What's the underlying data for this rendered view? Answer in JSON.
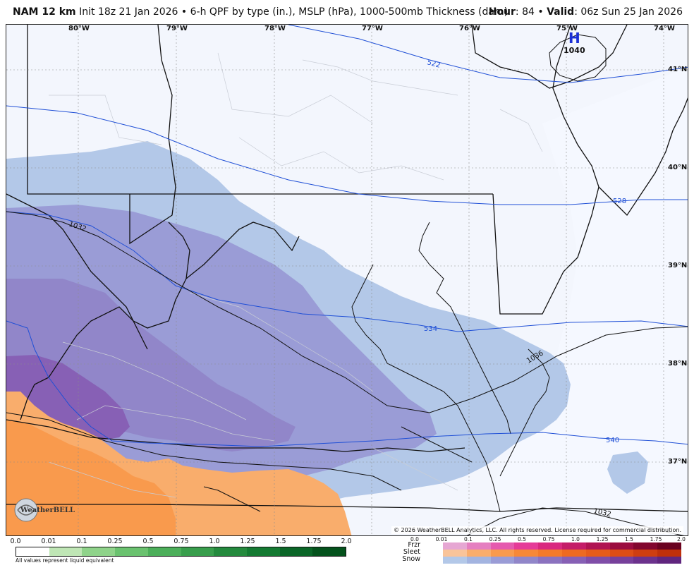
{
  "header": {
    "model": "NAM 12 km",
    "init": "Init 18z 21 Jan 2026",
    "separator": "•",
    "product": "6-h QPF by type (in.), MSLP (hPa), 1000-500mb Thickness (dam)",
    "hour_label": "Hour",
    "hour_value": ": 84",
    "valid_label": "Valid",
    "valid_value": ": 06z Sun 25 Jan 2026"
  },
  "map": {
    "longitudes": [
      "80°W",
      "79°W",
      "78°W",
      "77°W",
      "76°W",
      "75°W",
      "74°W"
    ],
    "latitudes": [
      "41°N",
      "40°N",
      "39°N",
      "38°N",
      "37°N"
    ],
    "high_pressure": {
      "letter": "H",
      "value": "1040"
    },
    "isobar_labels": [
      "1032",
      "1036",
      "1032"
    ],
    "thickness_labels": [
      "522",
      "528",
      "534",
      "540"
    ],
    "copyright": "© 2026 WeatherBELL Analytics, LLC. All rights reserved. License required for commercial distribution.",
    "logo_text": "WeatherBELL"
  },
  "legend_qpf": {
    "ticks": [
      "0.0",
      "0.01",
      "0.1",
      "0.25",
      "0.5",
      "0.75",
      "1.0",
      "1.25",
      "1.5",
      "1.75",
      "2.0"
    ],
    "colors": [
      "#ffffff",
      "#bfe6b5",
      "#8fd38a",
      "#6ac26f",
      "#4caf5a",
      "#389e4c",
      "#248a3d",
      "#147a32",
      "#0a6627",
      "#04521c"
    ],
    "note": "All values represent liquid equivalent"
  },
  "legend_type": {
    "labels": [
      "Frzr",
      "Sleet",
      "Snow"
    ],
    "ticks": [
      "0.0",
      "0.01",
      "0.1",
      "0.25",
      "0.5",
      "0.75",
      "1.0",
      "1.25",
      "1.5",
      "1.75",
      "2.0"
    ],
    "frzr_colors": [
      "#e6a7d3",
      "#e57fc0",
      "#e55aae",
      "#e53b98",
      "#d9287f",
      "#c41d68",
      "#b01452",
      "#9b0c3f",
      "#82062e",
      "#6a0220"
    ],
    "sleet_colors": [
      "#f9c49a",
      "#f9ad6c",
      "#f99a4d",
      "#f78837",
      "#f47a2a",
      "#ee6a21",
      "#e85c1b",
      "#dd4d15",
      "#cf3e10",
      "#bf300b"
    ],
    "snow_colors": [
      "#b3c8e8",
      "#a3b4e0",
      "#9a9cd6",
      "#9186c9",
      "#8b72bf",
      "#8760b5",
      "#804ea8",
      "#77409b",
      "#6c328d",
      "#60267e"
    ]
  }
}
